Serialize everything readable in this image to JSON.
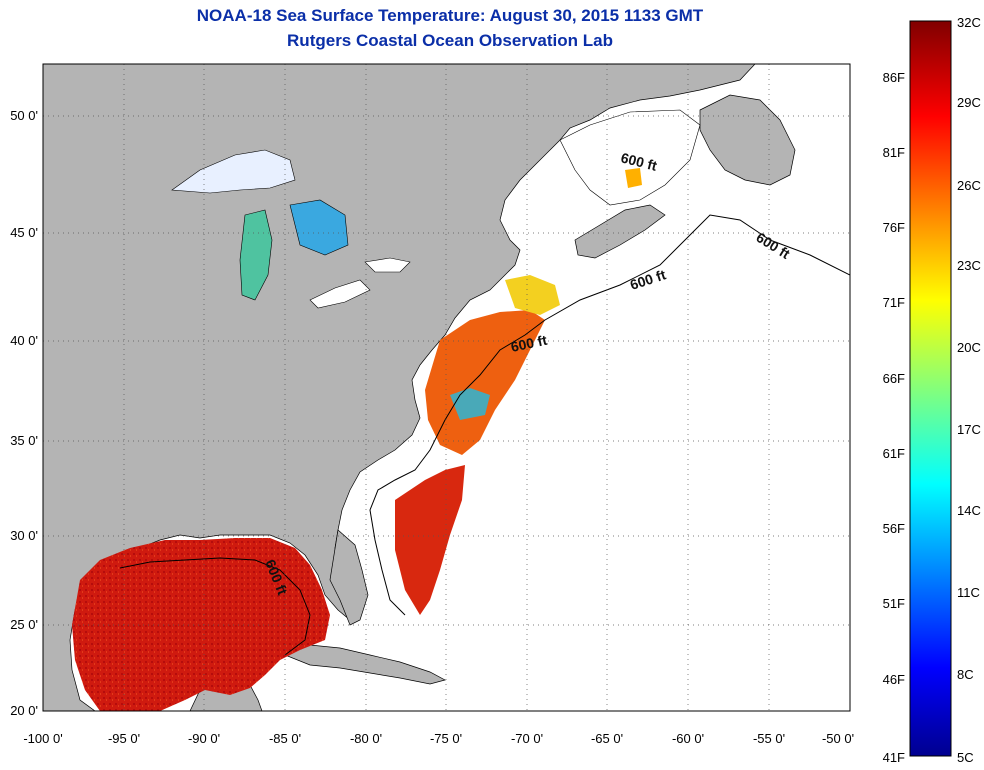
{
  "header": {
    "title": "NOAA-18 Sea Surface Temperature:  August 30, 2015 1133 GMT",
    "subtitle": "Rutgers Coastal Ocean Observation Lab"
  },
  "axes": {
    "lat_ticks": [
      "50 0'",
      "45 0'",
      "40 0'",
      "35 0'",
      "30 0'",
      "25 0'",
      "20 0'"
    ],
    "lon_ticks": [
      "-100 0'",
      "-95 0'",
      "-90 0'",
      "-85 0'",
      "-80 0'",
      "-75 0'",
      "-70 0'",
      "-65 0'",
      "-60 0'",
      "-55 0'",
      "-50 0'"
    ],
    "lon_range": [
      -100,
      -50
    ],
    "lat_range": [
      20,
      52.5
    ],
    "grid": "dotted"
  },
  "colorbar": {
    "celsius": [
      "32C",
      "29C",
      "26C",
      "23C",
      "20C",
      "17C",
      "14C",
      "11C",
      "8C",
      "5C"
    ],
    "fahrenheit": [
      "86F",
      "81F",
      "76F",
      "71F",
      "66F",
      "61F",
      "56F",
      "51F",
      "46F",
      "41F"
    ],
    "range_c": [
      5,
      32
    ]
  },
  "contours": {
    "label": "600 ft"
  },
  "colors": {
    "land": "#b4b4b4",
    "title": "#0b2fa8",
    "warm": "#d42010",
    "hot": "#b80e0e"
  }
}
